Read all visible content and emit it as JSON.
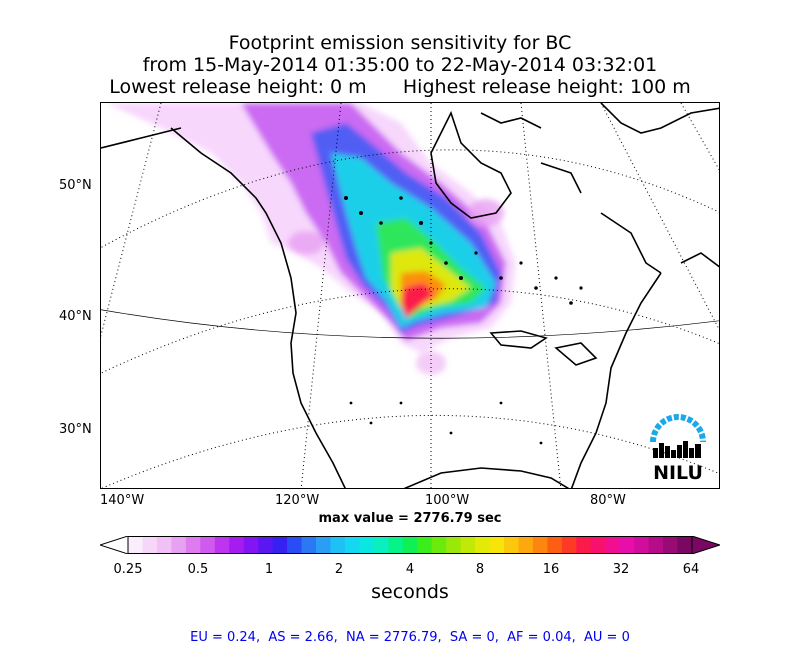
{
  "title": {
    "line1": "Footprint emission sensitivity for BC",
    "line2": "from 15-May-2014 01:35:00 to 22-May-2014 03:32:01",
    "line3": "Lowest release height: 0 m      Highest release height: 100 m"
  },
  "map": {
    "latitude_labels": [
      "50°N",
      "40°N",
      "30°N"
    ],
    "longitude_labels": [
      "140°W",
      "120°W",
      "100°W",
      "80°W"
    ],
    "max_value_text": "max value = 2776.79 sec",
    "logo_text": "NILU",
    "colors": {
      "coast": "#000000",
      "grid": "#000000",
      "plume_low": "#f4c8ff",
      "plume_mid": "#00e8e8",
      "plume_high": "#ff0040"
    }
  },
  "colorbar": {
    "unit": "seconds",
    "tick_labels": [
      "0.25",
      "0.5",
      "1",
      "2",
      "4",
      "8",
      "16",
      "32",
      "64"
    ],
    "colors": [
      "#fbeefc",
      "#f6d7f9",
      "#f0c0f6",
      "#e8a0f2",
      "#dd7cef",
      "#d05aee",
      "#bd35ee",
      "#a51cf0",
      "#8415f2",
      "#5a17f2",
      "#3720f2",
      "#2a4cf4",
      "#2b78f5",
      "#2a9ef7",
      "#1fc0f6",
      "#13d8f0",
      "#0be6e0",
      "#08efc0",
      "#06f38c",
      "#0ef053",
      "#3ced1c",
      "#6bea0e",
      "#99e80a",
      "#c2e808",
      "#e4ea07",
      "#f7e40a",
      "#fbc80c",
      "#fca80e",
      "#fd8610",
      "#fd5f12",
      "#fd3a25",
      "#fc1a4a",
      "#f8106e",
      "#f10e90",
      "#e80eac",
      "#d10d9e",
      "#b60c8a",
      "#980a74",
      "#7a0862"
    ]
  },
  "footer": {
    "text": "EU = 0.24,  AS = 2.66,  NA = 2776.79,  SA = 0,  AF = 0.04,  AU = 0"
  }
}
